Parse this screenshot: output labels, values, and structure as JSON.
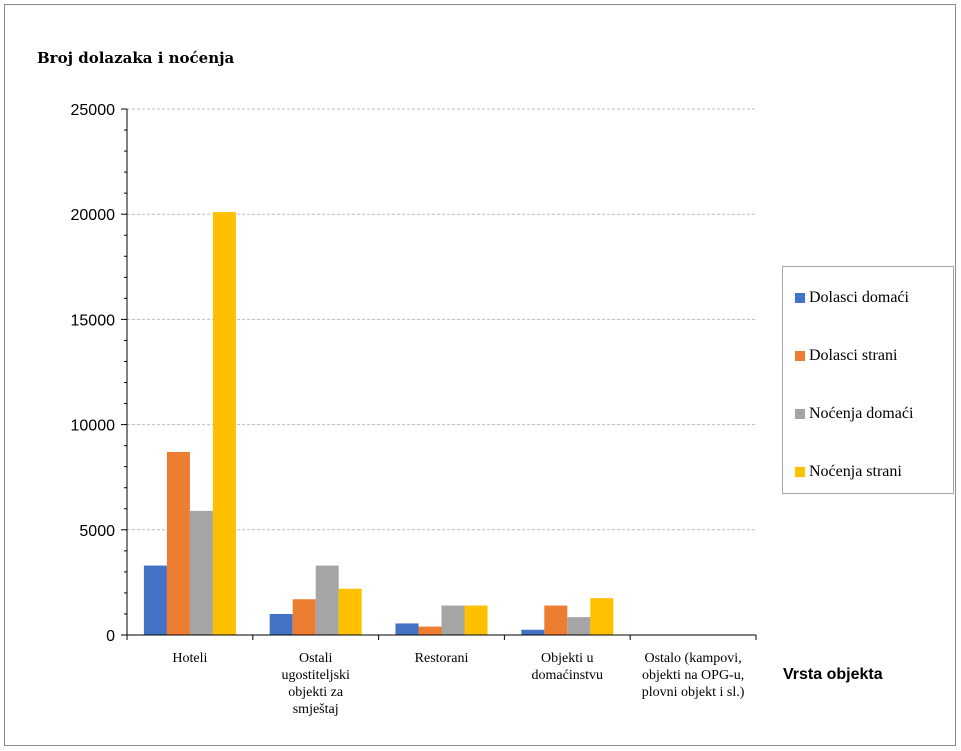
{
  "chart_data": {
    "type": "bar",
    "ylabel": "Broj dolazaka i noćenja",
    "xlabel": "Vrsta objekta",
    "ylim": [
      0,
      25000
    ],
    "yticks": [
      0,
      5000,
      10000,
      15000,
      20000,
      25000
    ],
    "grid": true,
    "legend_position": "right",
    "categories": [
      "Hoteli",
      "Ostali\nugostiteljski\nobjekti za\nsmještaj",
      "Restorani",
      "Objekti u\ndomaćinstvu",
      "Ostalo (kampovi,\nobjekti na OPG-u,\nplovni objekt i sl.)"
    ],
    "series": [
      {
        "name": "Dolasci domaći",
        "color": "#4472C4",
        "values": [
          3300,
          1000,
          550,
          250,
          0
        ]
      },
      {
        "name": "Dolasci strani",
        "color": "#ED7D31",
        "values": [
          8700,
          1700,
          400,
          1400,
          0
        ]
      },
      {
        "name": "Noćenja domaći",
        "color": "#A5A5A5",
        "values": [
          5900,
          3300,
          1400,
          850,
          0
        ]
      },
      {
        "name": "Noćenja strani",
        "color": "#FFC000",
        "values": [
          20100,
          2200,
          1400,
          1750,
          0
        ]
      }
    ]
  }
}
